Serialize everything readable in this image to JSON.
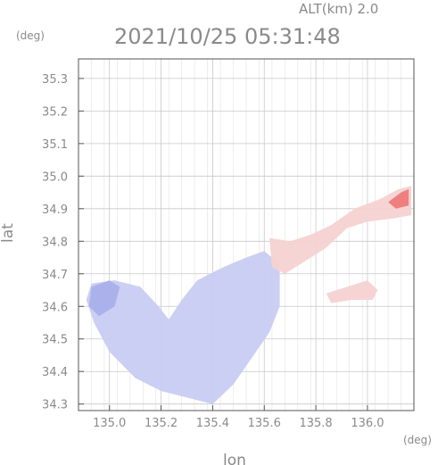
{
  "header": {
    "alt_label": "ALT(km) 2.0",
    "timestamp": "2021/10/25 05:31:48",
    "y_unit": "(deg)",
    "x_unit": "(deg)"
  },
  "chart_data": {
    "type": "heatmap",
    "xlabel": "lon",
    "ylabel": "lat",
    "xlim": [
      134.88,
      136.18
    ],
    "ylim": [
      34.28,
      35.36
    ],
    "x_ticks": [
      {
        "value": 135.0,
        "label": "135.0"
      },
      {
        "value": 135.2,
        "label": "135.2"
      },
      {
        "value": 135.4,
        "label": "135.4"
      },
      {
        "value": 135.6,
        "label": "135.6"
      },
      {
        "value": 135.8,
        "label": "135.8"
      },
      {
        "value": 136.0,
        "label": "136.0"
      }
    ],
    "y_ticks": [
      {
        "value": 34.3,
        "label": "34.3"
      },
      {
        "value": 34.4,
        "label": "34.4"
      },
      {
        "value": 34.5,
        "label": "34.5"
      },
      {
        "value": 34.6,
        "label": "34.6"
      },
      {
        "value": 34.7,
        "label": "34.7"
      },
      {
        "value": 34.8,
        "label": "34.8"
      },
      {
        "value": 34.9,
        "label": "34.9"
      },
      {
        "value": 35.0,
        "label": "35.0"
      },
      {
        "value": 35.1,
        "label": "35.1"
      },
      {
        "value": 35.2,
        "label": "35.2"
      },
      {
        "value": 35.3,
        "label": "35.3"
      }
    ],
    "grid": true,
    "colors": {
      "negative": "#c8ccf2",
      "negative_strong": "#a9b0ea",
      "positive": "#f6d2d2",
      "positive_strong": "#ee7a7a",
      "grid": "#c8c8c8",
      "axis": "#555555"
    },
    "regions": [
      {
        "name": "osaka-bay-area",
        "sign": "negative",
        "lonlat": [
          [
            134.93,
            34.67
          ],
          [
            135.02,
            34.68
          ],
          [
            135.12,
            34.66
          ],
          [
            135.19,
            34.6
          ],
          [
            135.23,
            34.56
          ],
          [
            135.28,
            34.62
          ],
          [
            135.34,
            34.68
          ],
          [
            135.44,
            34.72
          ],
          [
            135.53,
            34.75
          ],
          [
            135.6,
            34.77
          ],
          [
            135.66,
            34.73
          ],
          [
            135.66,
            34.6
          ],
          [
            135.62,
            34.52
          ],
          [
            135.55,
            34.44
          ],
          [
            135.48,
            34.36
          ],
          [
            135.4,
            34.3
          ],
          [
            135.3,
            34.32
          ],
          [
            135.2,
            34.34
          ],
          [
            135.1,
            34.38
          ],
          [
            135.0,
            34.46
          ],
          [
            134.94,
            34.55
          ],
          [
            134.91,
            34.62
          ]
        ]
      },
      {
        "name": "kobe-coast-darker",
        "sign": "negative_strong",
        "lonlat": [
          [
            134.93,
            34.66
          ],
          [
            135.0,
            34.68
          ],
          [
            135.04,
            34.66
          ],
          [
            135.02,
            34.6
          ],
          [
            134.96,
            34.57
          ],
          [
            134.92,
            34.6
          ]
        ]
      },
      {
        "name": "northeast-plume",
        "sign": "positive",
        "lonlat": [
          [
            135.62,
            34.81
          ],
          [
            135.7,
            34.8
          ],
          [
            135.78,
            34.82
          ],
          [
            135.86,
            34.85
          ],
          [
            135.95,
            34.9
          ],
          [
            136.05,
            34.93
          ],
          [
            136.12,
            34.96
          ],
          [
            136.17,
            34.97
          ],
          [
            136.17,
            34.88
          ],
          [
            136.1,
            34.87
          ],
          [
            136.0,
            34.86
          ],
          [
            135.92,
            34.84
          ],
          [
            135.84,
            34.78
          ],
          [
            135.76,
            34.74
          ],
          [
            135.68,
            34.7
          ],
          [
            135.63,
            34.72
          ]
        ]
      },
      {
        "name": "northeast-core",
        "sign": "positive_strong",
        "lonlat": [
          [
            136.08,
            34.92
          ],
          [
            136.13,
            34.95
          ],
          [
            136.16,
            34.96
          ],
          [
            136.16,
            34.91
          ],
          [
            136.11,
            34.9
          ]
        ]
      },
      {
        "name": "east-patch",
        "sign": "positive",
        "lonlat": [
          [
            135.84,
            34.64
          ],
          [
            135.92,
            34.66
          ],
          [
            136.0,
            34.68
          ],
          [
            136.04,
            34.65
          ],
          [
            136.02,
            34.62
          ],
          [
            135.94,
            34.62
          ],
          [
            135.86,
            34.61
          ]
        ]
      }
    ]
  }
}
